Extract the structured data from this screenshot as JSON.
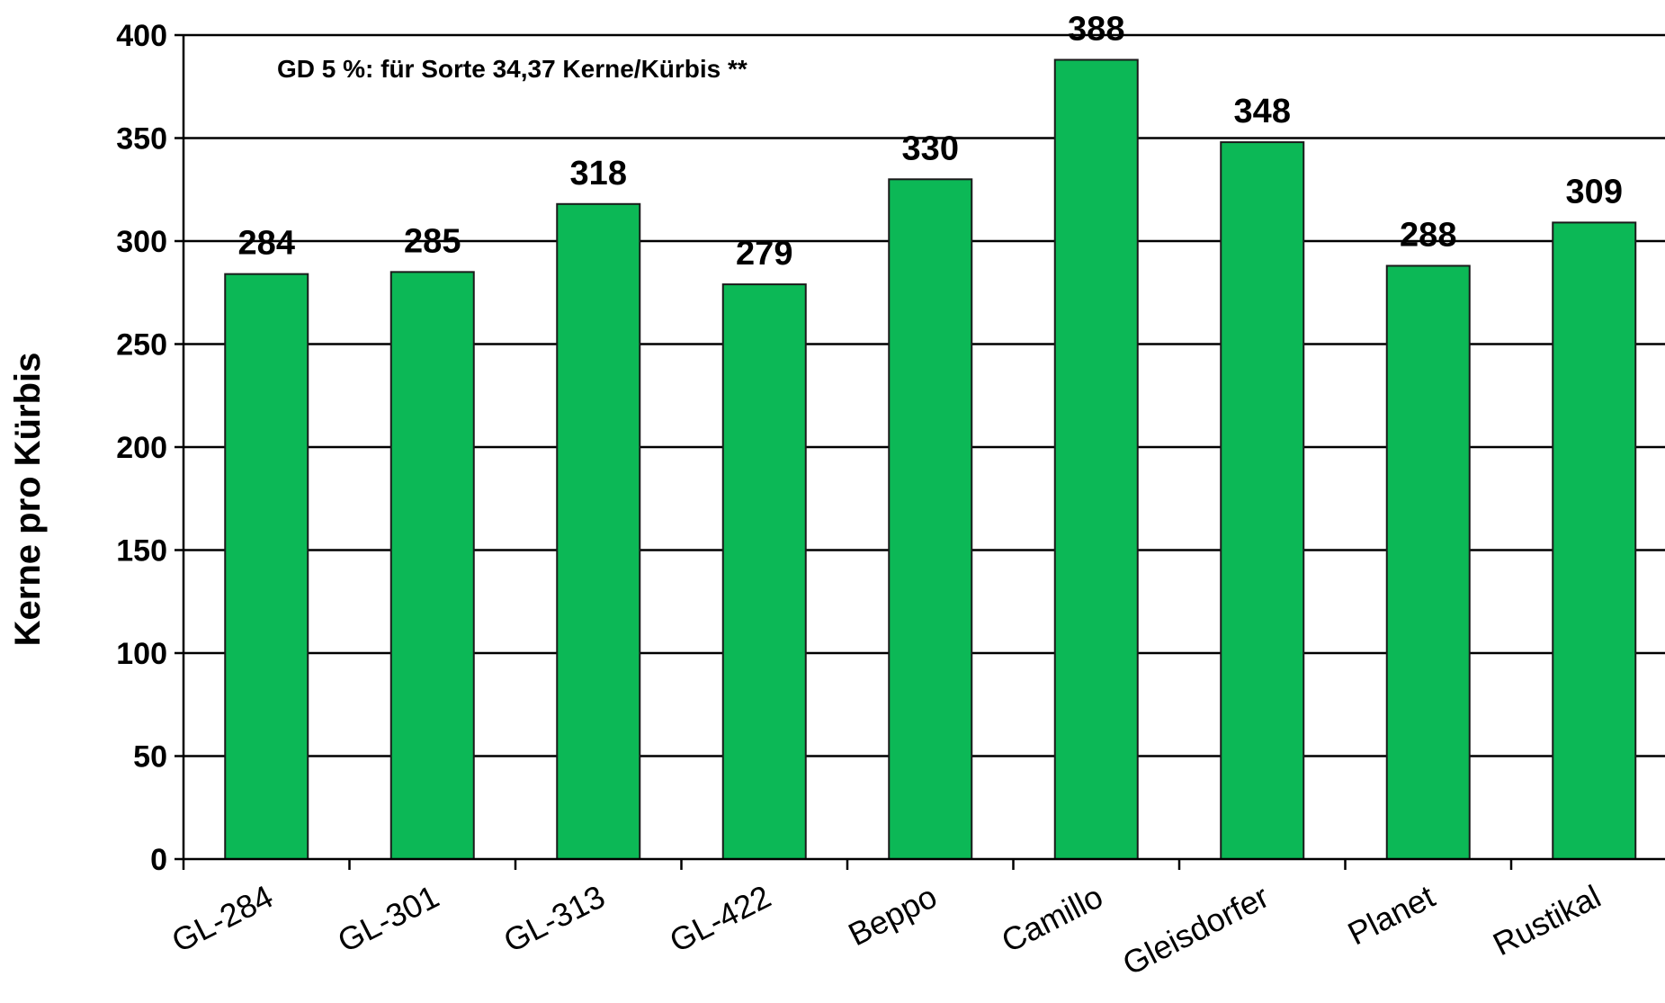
{
  "chart_data": {
    "type": "bar",
    "categories": [
      "GL-284",
      "GL-301",
      "GL-313",
      "GL-422",
      "Beppo",
      "Camillo",
      "Gleisdorfer",
      "Planet",
      "Rustikal"
    ],
    "values": [
      284,
      285,
      318,
      279,
      330,
      388,
      348,
      288,
      309
    ],
    "data_labels": [
      "284",
      "285",
      "318",
      "279",
      "330",
      "388",
      "348",
      "288",
      "309"
    ],
    "ylabel": "Kerne pro Kürbis",
    "ylim": [
      0,
      400
    ],
    "yticks": [
      0,
      50,
      100,
      150,
      200,
      250,
      300,
      350,
      400
    ],
    "ytick_labels": [
      "0",
      "50",
      "100",
      "150",
      "200",
      "250",
      "300",
      "350",
      "400"
    ],
    "annotation": "GD 5 %: für Sorte 34,37 Kerne/Kürbis  **",
    "grid": true,
    "bar_color": "#0cb856",
    "bar_edge_color": "#1a1a1a"
  }
}
